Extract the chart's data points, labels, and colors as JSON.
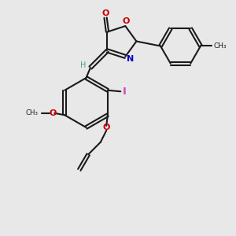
{
  "bg_color": "#e8e8e8",
  "bond_color": "#1a1a1a",
  "o_color": "#cc0000",
  "n_color": "#0000cc",
  "i_color": "#cc44cc",
  "h_color": "#4a9999",
  "lw": 1.5,
  "fs": 8.0,
  "figsize": [
    3.0,
    3.0
  ],
  "dpi": 100,
  "xlim": [
    0,
    10
  ],
  "ylim": [
    0,
    10
  ]
}
